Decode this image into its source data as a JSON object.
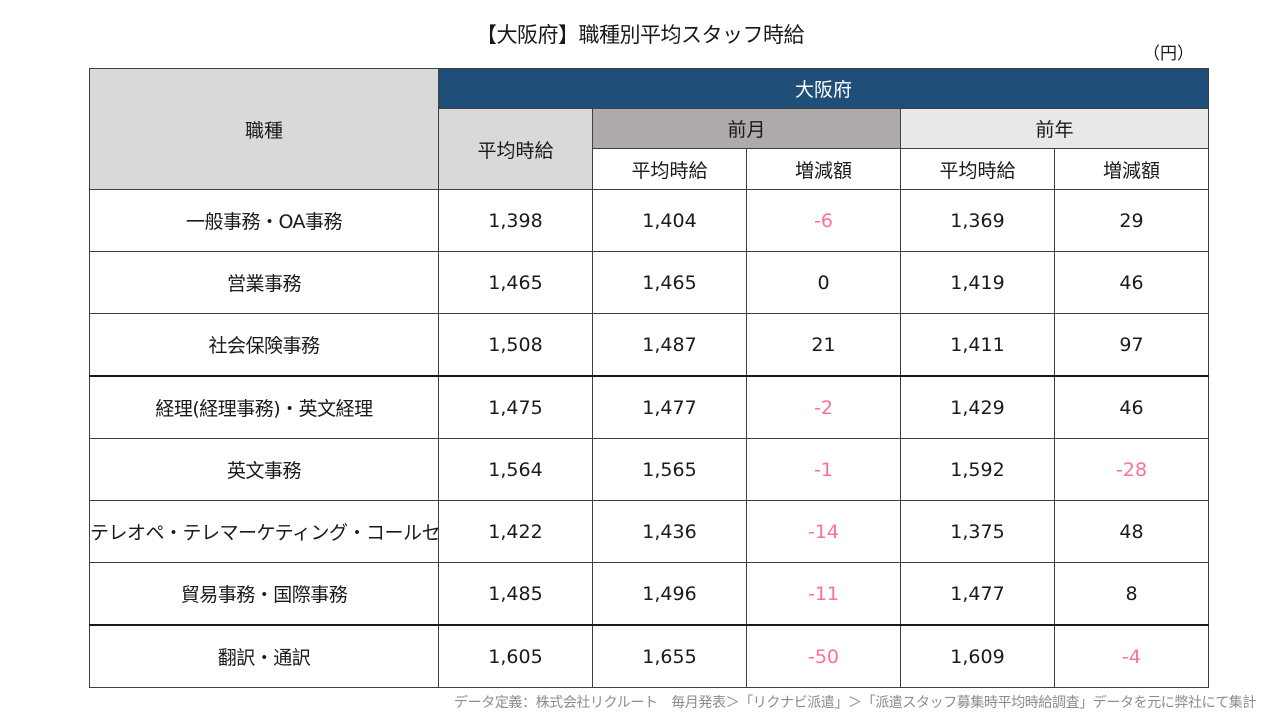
{
  "title": "【大阪府】職種別平均スタッフ時給",
  "unit": "（円）",
  "table": {
    "job_header": "職種",
    "region": "大阪府",
    "avg_header": "平均時給",
    "prev_month_header": "前月",
    "prev_year_header": "前年",
    "sub_avg": "平均時給",
    "sub_diff": "増減額",
    "rows": [
      {
        "job": "一般事務・OA事務",
        "avg": "1,398",
        "pm_avg": "1,404",
        "pm_diff": "-6",
        "py_avg": "1,369",
        "py_diff": "29"
      },
      {
        "job": "営業事務",
        "avg": "1,465",
        "pm_avg": "1,465",
        "pm_diff": "0",
        "py_avg": "1,419",
        "py_diff": "46"
      },
      {
        "job": "社会保険事務",
        "avg": "1,508",
        "pm_avg": "1,487",
        "pm_diff": "21",
        "py_avg": "1,411",
        "py_diff": "97"
      },
      {
        "job": "経理(経理事務)・英文経理",
        "avg": "1,475",
        "pm_avg": "1,477",
        "pm_diff": "-2",
        "py_avg": "1,429",
        "py_diff": "46"
      },
      {
        "job": "英文事務",
        "avg": "1,564",
        "pm_avg": "1,565",
        "pm_diff": "-1",
        "py_avg": "1,592",
        "py_diff": "-28"
      },
      {
        "job": "テレオペ・テレマーケティング・コールセンター",
        "avg": "1,422",
        "pm_avg": "1,436",
        "pm_diff": "-14",
        "py_avg": "1,375",
        "py_diff": "48"
      },
      {
        "job": "貿易事務・国際事務",
        "avg": "1,485",
        "pm_avg": "1,496",
        "pm_diff": "-11",
        "py_avg": "1,477",
        "py_diff": "8"
      },
      {
        "job": "翻訳・通訳",
        "avg": "1,605",
        "pm_avg": "1,655",
        "pm_diff": "-50",
        "py_avg": "1,609",
        "py_diff": "-4"
      }
    ]
  },
  "footnote": "データ定義：株式会社リクルート　毎月発表＞「リクナビ派遣」＞「派遣スタッフ募集時平均時給調査」データを元に弊社にて集計",
  "colors": {
    "region_header": "#1f4e79",
    "prev_month_header": "#aeaaaa",
    "prev_year_header": "#e8e8e8",
    "job_header": "#d9d9d9",
    "negative": "#ff6f9e"
  }
}
